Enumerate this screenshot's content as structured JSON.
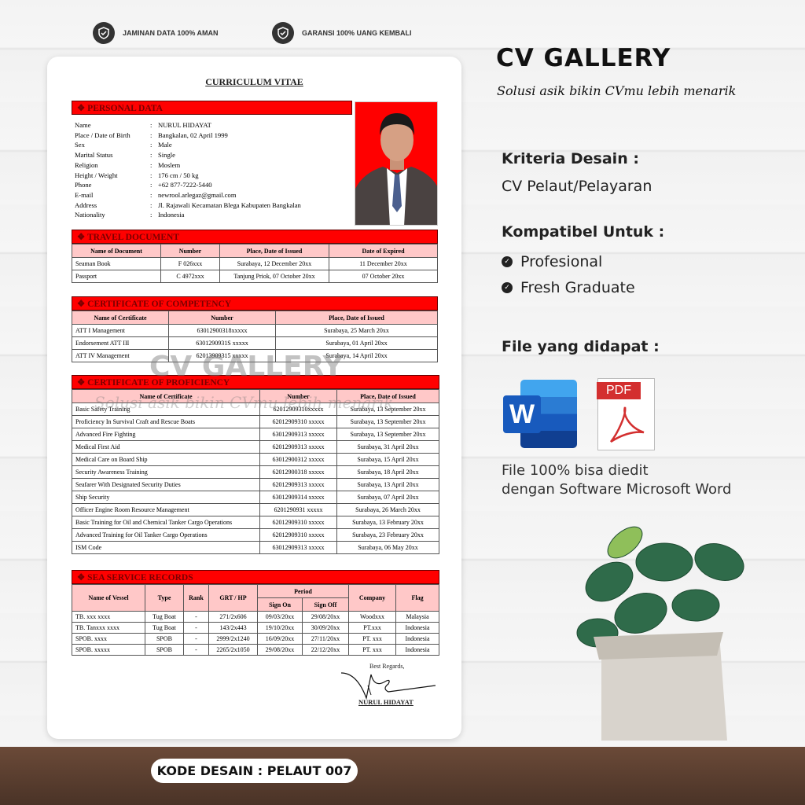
{
  "badges": [
    {
      "icon": "shield-check-icon",
      "label": "JAMINAN DATA 100% AMAN"
    },
    {
      "icon": "shield-check-icon",
      "label": "GARANSI 100% UANG KEMBALI"
    }
  ],
  "brand": {
    "title": "CV GALLERY",
    "tagline": "Solusi asik bikin CVmu lebih menarik"
  },
  "watermark": {
    "title": "CV GALLERY",
    "tagline": "Solusi asik bikin CVmu lebih menarik"
  },
  "cv": {
    "title": "CURRICULUM VITAE",
    "personal": {
      "heading": "❖  PERSONAL DATA",
      "rows": [
        [
          "Name",
          "NURUL HIDAYAT"
        ],
        [
          "Place / Date of Birth",
          "Bangkalan, 02 April 1999"
        ],
        [
          "Sex",
          "Male"
        ],
        [
          "Marital Status",
          "Single"
        ],
        [
          "Religion",
          "Moslem"
        ],
        [
          "Height / Weight",
          "176 cm / 50 kg"
        ],
        [
          "Phone",
          "+62 877-7222-5440"
        ],
        [
          "E-mail",
          "newrool.arlegaz@gmail.com"
        ],
        [
          "Address",
          "Jl. Rajawali Kecamatan Blega Kabupaten Bangkalan"
        ],
        [
          "Nationality",
          "Indonesia"
        ]
      ]
    },
    "travel": {
      "heading": "❖  TRAVEL DOCUMENT",
      "headers": [
        "Name of Document",
        "Number",
        "Place, Date of Issued",
        "Date of Expired"
      ],
      "rows": [
        [
          "Seaman Book",
          "F 026xxx",
          "Surabaya, 12 December 20xx",
          "11 December 20xx"
        ],
        [
          "Passport",
          "C 4972xxx",
          "Tanjung Priok, 07 October 20xx",
          "07 October 20xx"
        ]
      ]
    },
    "competency": {
      "heading": "❖  CERTIFICATE OF COMPETENCY",
      "headers": [
        "Name of Certificate",
        "Number",
        "Place, Date of Issued"
      ],
      "rows": [
        [
          "ATT I Management",
          "63012900318xxxxx",
          "Surabaya, 25 March 20xx"
        ],
        [
          "Endorsement ATT III",
          "6301290931S xxxxx",
          "Surabaya, 01 April 20xx"
        ],
        [
          "ATT IV Management",
          "62013909315 xxxxx",
          "Surabaya, 14 April 20xx"
        ]
      ]
    },
    "proficiency": {
      "heading": "❖  CERTIFICATE OF PROFICIENCY",
      "headers": [
        "Name of Certificate",
        "Number",
        "Place, Date of Issued"
      ],
      "rows": [
        [
          "Basic Safety Training",
          "62012909310xxxxx",
          "Surabaya, 13 September 20xx"
        ],
        [
          "Proficiency In Survival Craft and Rescue Boats",
          "62012909310 xxxxx",
          "Surabaya, 13 September 20xx"
        ],
        [
          "Advanced Fire Fighting",
          "63012909313 xxxxx",
          "Surabaya, 13 September 20xx"
        ],
        [
          "Medical First Aid",
          "62012909313 xxxxx",
          "Surabaya, 31 April 20xx"
        ],
        [
          "Medical Care on Board Ship",
          "63012900312 xxxxx",
          "Surabaya, 15 April 20xx"
        ],
        [
          "Security Awareness Training",
          "62012900318 xxxxx",
          "Surabaya, 18 April 20xx"
        ],
        [
          "Seafarer With Designated Security Duties",
          "62012909313 xxxxx",
          "Surabaya, 13 April 20xx"
        ],
        [
          "Ship Security",
          "63012909314 xxxxx",
          "Surabaya, 07 April 20xx"
        ],
        [
          "Officer Engine Room Resource Management",
          "6201290931 xxxxx",
          "Surabaya, 26 March 20xx"
        ],
        [
          "Basic Training for Oil and Chemical Tanker Cargo Operations",
          "62012909310 xxxxx",
          "Surabaya, 13 February 20xx"
        ],
        [
          "Advanced Training for Oil Tanker Cargo Operations",
          "62012909310 xxxxx",
          "Surabaya, 23 February 20xx"
        ],
        [
          "ISM Code",
          "63012909313 xxxxx",
          "Surabaya, 06 May 20xx"
        ]
      ]
    },
    "sea": {
      "heading": "❖  SEA SERVICE RECORDS",
      "headers": [
        "Name of Vessel",
        "Type",
        "Rank",
        "GRT / HP",
        "Period",
        "Company",
        "Flag"
      ],
      "subheaders": [
        "Sign On",
        "Sign Off"
      ],
      "rows": [
        [
          "TB. xxx xxxx",
          "Tug Boat",
          "-",
          "271/2x606",
          "09/03/20xx",
          "29/08/20xx",
          "Woodxxx",
          "Malaysia"
        ],
        [
          "TB. Tanxxx xxxx",
          "Tug Boat",
          "-",
          "143/2x443",
          "19/10/20xx",
          "30/09/20xx",
          "PT.xxx",
          "Indonesia"
        ],
        [
          "SPOB. xxxx",
          "SPOB",
          "-",
          "2999/2x1240",
          "16/09/20xx",
          "27/11/20xx",
          "PT. xxx",
          "Indonesia"
        ],
        [
          "SPOB. xxxxx",
          "SPOB",
          "-",
          "2265/2x1050",
          "29/08/20xx",
          "22/12/20xx",
          "PT. xxx",
          "Indonesia"
        ]
      ]
    },
    "closing": "Best Regards,",
    "signer": "NURUL HIDAYAT"
  },
  "info": {
    "criteria_label": "Kriteria Desain :",
    "criteria_value": "CV Pelaut/Pelayaran",
    "compat_label": "Kompatibel Untuk :",
    "compat_items": [
      "Profesional",
      "Fresh Graduate"
    ],
    "files_label": "File yang didapat :",
    "pdf_label": "PDF",
    "word_letter": "W",
    "note_1": "File 100% bisa diedit",
    "note_2": "dengan Software Microsoft Word"
  },
  "code_pill": "KODE DESAIN : PELAUT 007",
  "colors": {
    "section_red": "#ff0000",
    "header_pink": "#ffc8c8",
    "word_blue": "#185abd",
    "pdf_red": "#d32f2f"
  }
}
